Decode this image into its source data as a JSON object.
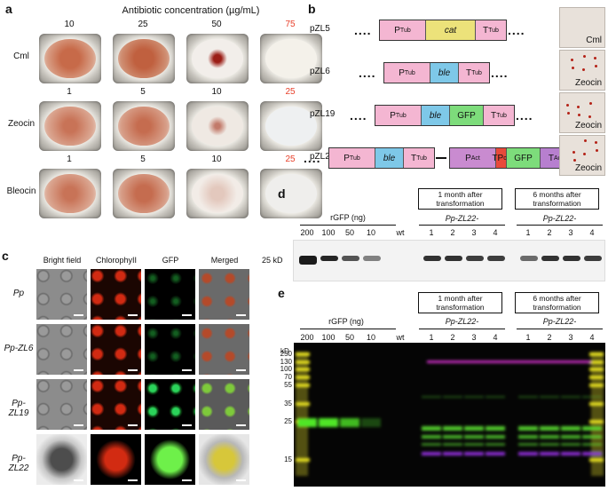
{
  "panel_a": {
    "letter": "a",
    "title": "Antibiotic concentration (µg/mL)",
    "rows": [
      {
        "label": "Cml",
        "concs": [
          "10",
          "25",
          "50",
          "75"
        ]
      },
      {
        "label": "Zeocin",
        "concs": [
          "1",
          "5",
          "10",
          "25"
        ]
      },
      {
        "label": "Bleocin",
        "concs": [
          "1",
          "5",
          "10",
          "25"
        ]
      }
    ]
  },
  "panel_b": {
    "letter": "b",
    "constructs": [
      {
        "name": "pZL5",
        "segments": [
          {
            "p": "P",
            "s": "Tub"
          },
          {
            "p": "cat",
            "s": ""
          },
          {
            "p": "T",
            "s": "Tub"
          }
        ],
        "plate": "Cml"
      },
      {
        "name": "pZL6",
        "segments": [
          {
            "p": "P",
            "s": "Tub"
          },
          {
            "p": "ble",
            "s": ""
          },
          {
            "p": "T",
            "s": "Tub"
          }
        ],
        "plate": "Zeocin"
      },
      {
        "name": "pZL19",
        "segments": [
          {
            "p": "P",
            "s": "Tub"
          },
          {
            "p": "ble",
            "s": ""
          },
          {
            "p": "GFP",
            "s": ""
          },
          {
            "p": "T",
            "s": "Tub"
          }
        ],
        "plate": "Zeocin"
      },
      {
        "name": "pZL22",
        "segments": [
          {
            "p": "P",
            "s": "Tub"
          },
          {
            "p": "ble",
            "s": ""
          },
          {
            "p": "T",
            "s": "Tub"
          }
        ],
        "segments2": [
          {
            "p": "P",
            "s": "Act"
          },
          {
            "p": "TP",
            "s": "cp"
          },
          {
            "p": "GFP",
            "s": ""
          },
          {
            "p": "T",
            "s": "Act"
          }
        ],
        "plate": "Zeocin"
      }
    ],
    "colors": {
      "P": "#f4b6d2",
      "cat": "#ece27a",
      "ble": "#7ec8e8",
      "GFP": "#7ddc7b",
      "TP": "#e84a3a",
      "PAct": "#c98bd0",
      "TAct": "#b77fcf"
    }
  },
  "panel_c": {
    "letter": "c",
    "columns": [
      "Bright field",
      "ChlorophyII",
      "GFP",
      "Merged"
    ],
    "rows": [
      "Pp",
      "Pp-ZL6",
      "Pp-ZL19",
      "Pp-ZL22"
    ]
  },
  "panel_d": {
    "letter": "d",
    "rgfp_label": "rGFP (ng)",
    "rgfp_lanes": [
      "200",
      "100",
      "50",
      "10"
    ],
    "wt_label": "wt",
    "box1": "1 month after transformation",
    "box2": "6 months after transformation",
    "strain_label": "Pp-ZL22-",
    "lanes": [
      "1",
      "2",
      "3",
      "4"
    ],
    "marker": "25 kD"
  },
  "panel_e": {
    "letter": "e",
    "rgfp_label": "rGFP (ng)",
    "rgfp_lanes": [
      "200",
      "100",
      "50",
      "10"
    ],
    "wt_label": "wt",
    "box1": "1 month after transformation",
    "box2": "6 months after transformation",
    "strain_label": "Pp-ZL22-",
    "lanes": [
      "1",
      "2",
      "3",
      "4"
    ],
    "kd_label": "kD",
    "ladder": [
      "250",
      "130",
      "100",
      "70",
      "55",
      "35",
      "25",
      "15"
    ]
  }
}
